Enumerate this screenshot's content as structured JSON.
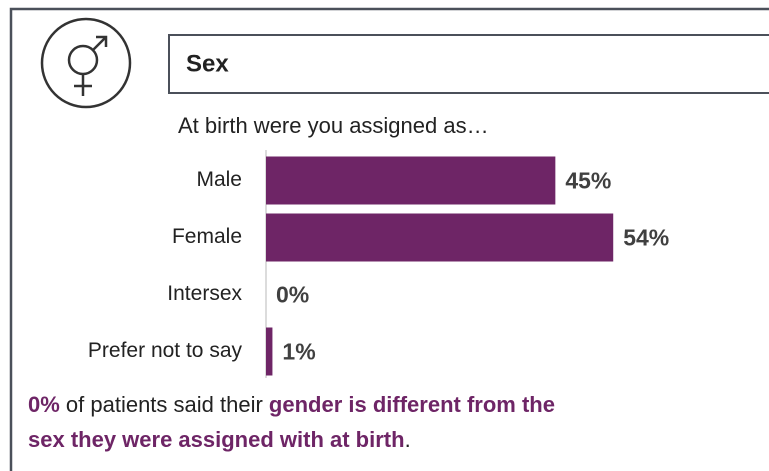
{
  "header": {
    "title": "Sex"
  },
  "chart_data": {
    "type": "bar",
    "orientation": "horizontal",
    "title": "At birth were you assigned as…",
    "categories": [
      "Male",
      "Female",
      "Intersex",
      "Prefer not to say"
    ],
    "values": [
      45,
      54,
      0,
      1
    ],
    "value_labels": [
      "45%",
      "54%",
      "0%",
      "1%"
    ],
    "color": "#6e2566"
  },
  "footer": {
    "lines": [
      [
        "0%",
        " of patients said their ",
        "gender is different from the"
      ],
      [
        "sex they were assigned with at birth",
        "."
      ]
    ]
  }
}
